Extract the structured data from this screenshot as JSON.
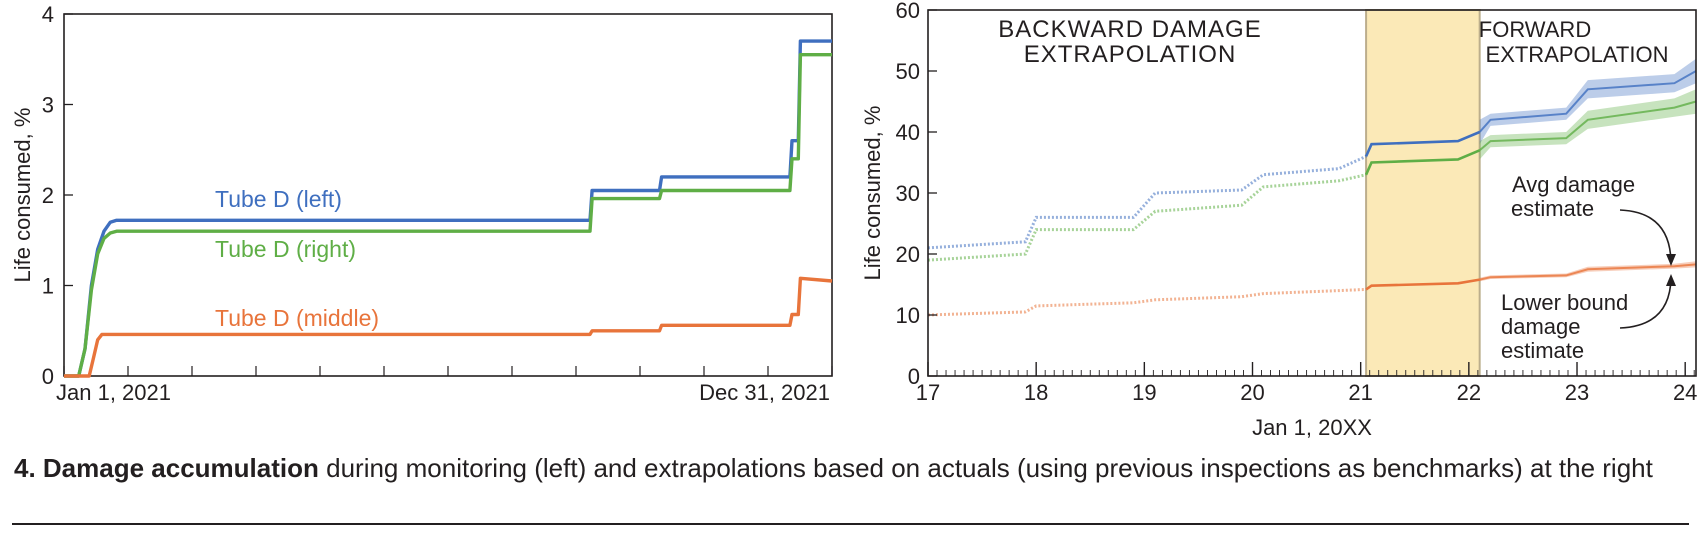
{
  "caption": {
    "number_title": "4. Damage accumulation",
    "text": " during monitoring (left) and extrapolations based on actuals (using previous inspections as benchmarks) at the right"
  },
  "chart_data": [
    {
      "type": "line",
      "title": "",
      "xlabel": "",
      "ylabel": "Life consumed, %",
      "ylim": [
        0,
        4
      ],
      "yticks": [
        0,
        1,
        2,
        3,
        4
      ],
      "x_tick_labels": [
        "Jan 1, 2021",
        "Dec 31, 2021"
      ],
      "xlim": [
        0,
        365
      ],
      "grid": false,
      "series": [
        {
          "name": "Tube D (left)",
          "color": "#3f6fbf",
          "x": [
            0,
            7,
            10,
            13,
            16,
            19,
            22,
            25,
            27,
            250,
            251,
            283,
            284,
            345,
            346,
            349,
            350,
            365
          ],
          "y": [
            0,
            0,
            0.3,
            1.0,
            1.4,
            1.6,
            1.7,
            1.72,
            1.72,
            1.72,
            2.05,
            2.05,
            2.2,
            2.2,
            2.6,
            2.6,
            3.7,
            3.7
          ]
        },
        {
          "name": "Tube D (right)",
          "color": "#5fae46",
          "x": [
            0,
            7,
            10,
            13,
            16,
            19,
            22,
            25,
            27,
            250,
            251,
            283,
            284,
            345,
            346,
            349,
            350,
            365
          ],
          "y": [
            0,
            0,
            0.3,
            0.95,
            1.35,
            1.52,
            1.58,
            1.6,
            1.6,
            1.6,
            1.96,
            1.96,
            2.05,
            2.05,
            2.4,
            2.4,
            3.55,
            3.55
          ]
        },
        {
          "name": "Tube D (middle)",
          "color": "#e8743b",
          "x": [
            0,
            12,
            14,
            16,
            18,
            250,
            251,
            283,
            284,
            345,
            346,
            349,
            350,
            365
          ],
          "y": [
            0,
            0,
            0.2,
            0.4,
            0.46,
            0.46,
            0.5,
            0.5,
            0.56,
            0.56,
            0.68,
            0.68,
            1.08,
            1.05
          ]
        }
      ]
    },
    {
      "type": "line",
      "title": "",
      "xlabel": "Jan 1, 20XX",
      "ylabel": "Life consumed, %",
      "xlim": [
        17,
        24.1
      ],
      "ylim": [
        0,
        60
      ],
      "xticks": [
        17,
        18,
        19,
        20,
        21,
        22,
        23,
        24
      ],
      "yticks": [
        0,
        10,
        20,
        30,
        40,
        50,
        60
      ],
      "grid": false,
      "monitoring_band": [
        21.05,
        22.1
      ],
      "annotations": {
        "backward_1": "BACKWARD DAMAGE",
        "backward_2": "EXTRAPOLATION",
        "forward_1": "FORWARD",
        "forward_2": "EXTRAPOLATION",
        "avg_1": "Avg damage",
        "avg_2": "estimate",
        "lower_1": "Lower bound",
        "lower_2": "damage",
        "lower_3": "estimate"
      },
      "series": [
        {
          "color": "#3f6fbf",
          "backward_x": [
            17,
            17.9,
            18.0,
            18.9,
            19.1,
            19.9,
            20.1,
            20.8,
            21.05
          ],
          "backward_y": [
            21,
            22,
            26,
            26,
            30,
            30.5,
            33,
            34,
            36
          ],
          "monitor_x": [
            21.05,
            21.1,
            21.9,
            22.1
          ],
          "monitor_y": [
            36,
            38,
            38.5,
            40
          ],
          "forward_x": [
            22.1,
            22.2,
            22.9,
            23.1,
            23.9,
            24.1
          ],
          "forward_y": [
            40,
            42,
            43,
            47,
            48,
            50
          ],
          "forward_band": [
            4,
            2,
            2,
            3,
            3,
            4
          ]
        },
        {
          "color": "#5fae46",
          "backward_x": [
            17,
            17.9,
            18.0,
            18.9,
            19.1,
            19.9,
            20.1,
            20.8,
            21.05
          ],
          "backward_y": [
            19,
            20,
            24,
            24,
            27,
            28,
            31,
            32,
            33
          ],
          "monitor_x": [
            21.05,
            21.1,
            21.9,
            22.1
          ],
          "monitor_y": [
            33,
            35,
            35.5,
            37
          ],
          "forward_x": [
            22.1,
            22.2,
            22.9,
            23.1,
            23.9,
            24.1
          ],
          "forward_y": [
            37,
            38.5,
            39,
            42,
            44,
            45
          ],
          "forward_band": [
            3,
            2,
            2,
            3,
            3,
            4
          ]
        },
        {
          "color": "#e8743b",
          "backward_x": [
            17,
            17.9,
            18.0,
            18.9,
            19.1,
            19.9,
            20.1,
            20.8,
            21.05
          ],
          "backward_y": [
            10,
            10.5,
            11.5,
            12,
            12.5,
            13,
            13.5,
            14,
            14.2
          ],
          "monitor_x": [
            21.05,
            21.1,
            21.9,
            22.1
          ],
          "monitor_y": [
            14.2,
            14.8,
            15.2,
            15.8
          ],
          "forward_x": [
            22.1,
            22.2,
            22.9,
            23.1,
            23.9,
            24.1
          ],
          "forward_y": [
            15.8,
            16.2,
            16.5,
            17.5,
            18,
            18.3
          ],
          "forward_band": [
            0.6,
            0.6,
            0.6,
            0.8,
            0.8,
            1.0
          ]
        }
      ]
    }
  ]
}
